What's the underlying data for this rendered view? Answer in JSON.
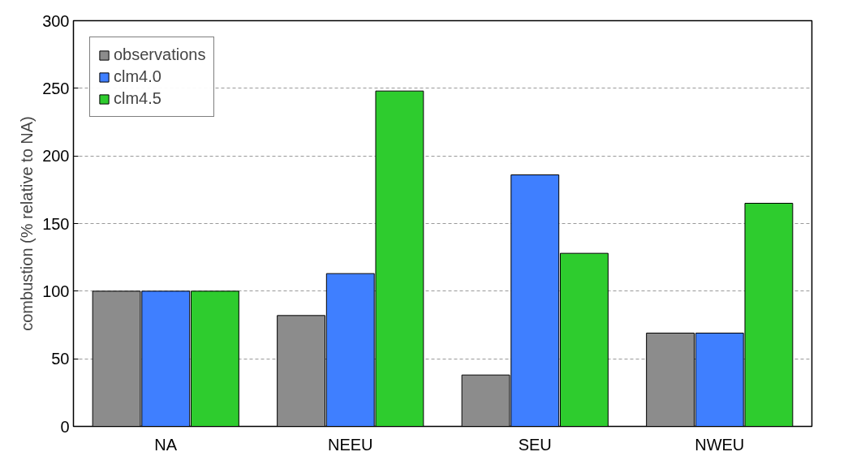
{
  "chart_data": {
    "type": "bar",
    "ylabel": "combustion (% relative to NA)",
    "categories": [
      "NA",
      "NEEU",
      "SEU",
      "NWEU"
    ],
    "series": [
      {
        "name": "observations",
        "color": "#8c8c8c",
        "values": [
          100,
          82,
          38,
          69
        ]
      },
      {
        "name": "clm4.0",
        "color": "#3f7fff",
        "values": [
          100,
          113,
          186,
          69
        ]
      },
      {
        "name": "clm4.5",
        "color": "#2ecc2e",
        "values": [
          100,
          248,
          128,
          165
        ]
      }
    ],
    "ylim": [
      0,
      300
    ],
    "yticks": [
      0,
      50,
      100,
      150,
      200,
      250,
      300
    ],
    "grid": "y",
    "legend": "top left"
  }
}
